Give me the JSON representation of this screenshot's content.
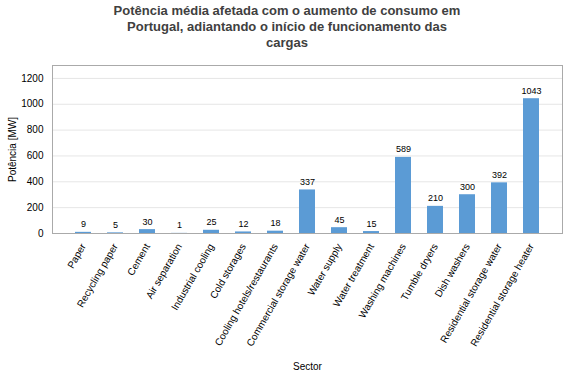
{
  "chart_data": {
    "type": "bar",
    "title": "Potência média afetada com o aumento de consumo em\nPortugal, adiantando o início de funcionamento das\ncargas",
    "xlabel": "Sector",
    "ylabel": "Potência [MW]",
    "categories": [
      "Paper",
      "Recycling paper",
      "Cement",
      "Air separation",
      "Industrial cooling",
      "Cold storages",
      "Cooling hotels/restaurants",
      "Commercial storage water",
      "Water supply",
      "Water treatment",
      "Washing machines",
      "Tumble dryers",
      "Dish washers",
      "Residential storage water",
      "Residential storage heater"
    ],
    "values": [
      9,
      5,
      30,
      1,
      25,
      12,
      18,
      337,
      45,
      15,
      589,
      210,
      300,
      392,
      1043
    ],
    "color": "#5B9BD5",
    "ylim": [
      0,
      1300
    ],
    "yticks": [
      0,
      200,
      400,
      600,
      800,
      1000,
      1200
    ],
    "grid": true,
    "data_labels": true
  }
}
